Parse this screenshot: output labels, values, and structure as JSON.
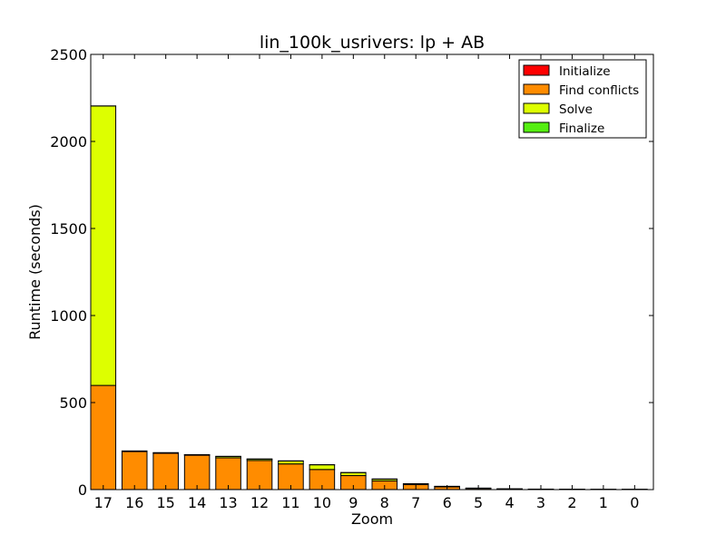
{
  "chart_data": {
    "type": "bar",
    "stacked": true,
    "title": "lin_100k_usrivers: lp + AB",
    "xlabel": "Zoom",
    "ylabel": "Runtime (seconds)",
    "ylim": [
      0,
      2500
    ],
    "yticks": [
      "0",
      "500",
      "1000",
      "1500",
      "2000",
      "2500"
    ],
    "legend_position": "top-right",
    "categories": [
      "17",
      "16",
      "15",
      "14",
      "13",
      "12",
      "11",
      "10",
      "9",
      "8",
      "7",
      "6",
      "5",
      "4",
      "3",
      "2",
      "1",
      "0"
    ],
    "series": [
      {
        "name": "Initialize",
        "color": "#ff0000",
        "values": [
          0.5,
          0.5,
          0.5,
          0.5,
          0.5,
          0.5,
          0.5,
          0.5,
          0.5,
          0.5,
          0.5,
          0.5,
          0.3,
          0.2,
          0.2,
          0.1,
          0.1,
          0.1
        ]
      },
      {
        "name": "Find conflicts",
        "color": "#ff8c00",
        "values": [
          598,
          218,
          208,
          197,
          182,
          167,
          147,
          115,
          80,
          50,
          28,
          15,
          6,
          3,
          2,
          1.5,
          1,
          1
        ]
      },
      {
        "name": "Solve",
        "color": "#ddff00",
        "values": [
          1605,
          3,
          3,
          3,
          8,
          8,
          17,
          27,
          17,
          10,
          5,
          3,
          2,
          1,
          0.5,
          0.5,
          0.3,
          0.3
        ]
      },
      {
        "name": "Finalize",
        "color": "#55ee11",
        "values": [
          0.5,
          0.5,
          0.5,
          0.5,
          0.5,
          0.5,
          0.5,
          0.5,
          0.5,
          0.5,
          0.5,
          0.3,
          0.2,
          0.2,
          0.1,
          0.1,
          0.1,
          0.1
        ]
      }
    ]
  }
}
